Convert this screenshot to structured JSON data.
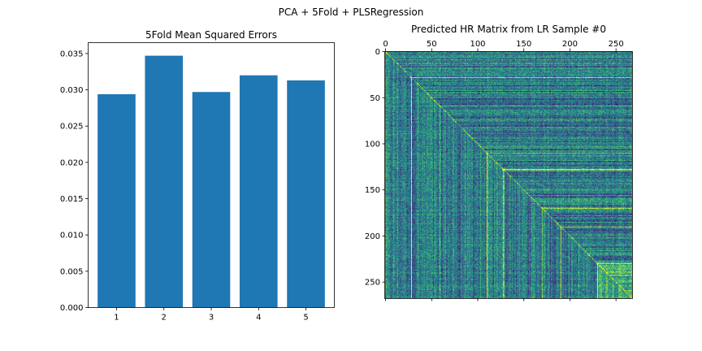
{
  "figure": {
    "title": "PCA + 5Fold + PLSRegression"
  },
  "chart_data": [
    {
      "type": "bar",
      "title": "5Fold Mean Squared Errors",
      "categories": [
        "1",
        "2",
        "3",
        "4",
        "5"
      ],
      "values": [
        0.0294,
        0.0347,
        0.0297,
        0.032,
        0.0313
      ],
      "ylim": [
        0,
        0.0365
      ],
      "yticks": [
        "0.000",
        "0.005",
        "0.010",
        "0.015",
        "0.020",
        "0.025",
        "0.030",
        "0.035"
      ],
      "color": "#1f77b4",
      "grid": false
    },
    {
      "type": "heatmap",
      "title": "Predicted HR Matrix from LR Sample #0",
      "size": 268,
      "xticks": [
        "0",
        "50",
        "100",
        "150",
        "200",
        "250"
      ],
      "yticks": [
        "0",
        "50",
        "100",
        "150",
        "200",
        "250"
      ],
      "x_axis_position": "top",
      "colormap": "viridis",
      "grid": false
    }
  ]
}
